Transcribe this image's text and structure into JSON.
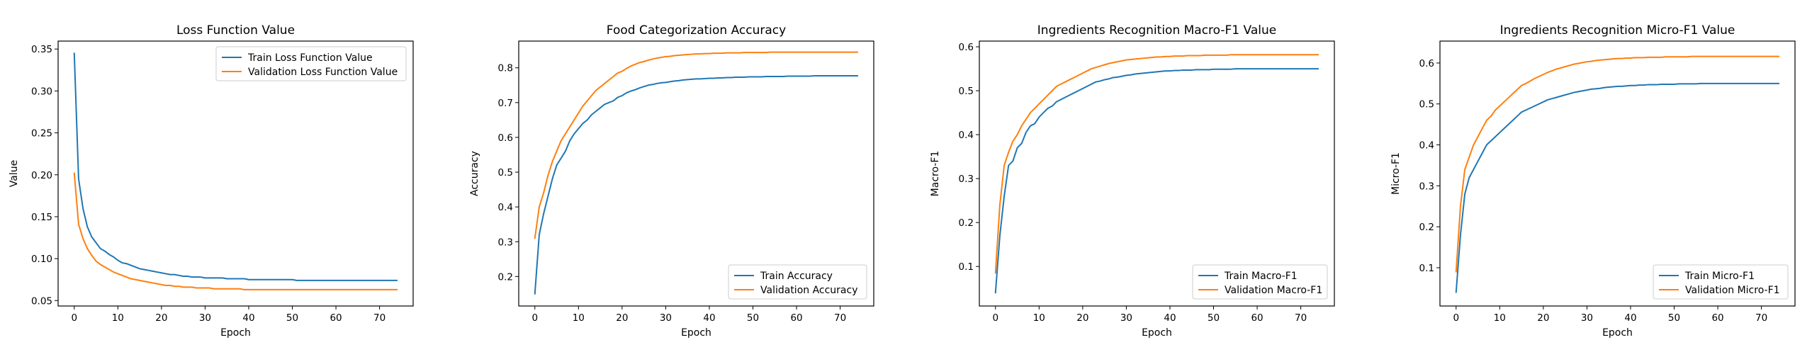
{
  "colors": {
    "train": "#1f77b4",
    "validation": "#ff7f0e",
    "axis": "#000000",
    "legend_border": "#cccccc"
  },
  "chart_data": [
    {
      "type": "line",
      "title": "Loss Function Value",
      "xlabel": "Epoch",
      "ylabel": "Value",
      "xlim": [
        -3.7,
        77.7
      ],
      "ylim": [
        0.0435,
        0.3595
      ],
      "xticks": [
        0,
        10,
        20,
        30,
        40,
        50,
        60,
        70
      ],
      "yticks": [
        0.05,
        0.1,
        0.15,
        0.2,
        0.25,
        0.3,
        0.35
      ],
      "ytick_labels": [
        "0.05",
        "0.10",
        "0.15",
        "0.20",
        "0.25",
        "0.30",
        "0.35"
      ],
      "legend_loc": "upper right",
      "series": [
        {
          "name": "Train Loss Function Value",
          "color_key": "train",
          "values": [
            0.345,
            0.195,
            0.16,
            0.138,
            0.126,
            0.119,
            0.112,
            0.109,
            0.105,
            0.102,
            0.098,
            0.095,
            0.094,
            0.092,
            0.09,
            0.088,
            0.087,
            0.086,
            0.085,
            0.084,
            0.083,
            0.082,
            0.081,
            0.081,
            0.08,
            0.079,
            0.079,
            0.078,
            0.078,
            0.078,
            0.077,
            0.077,
            0.077,
            0.077,
            0.077,
            0.076,
            0.076,
            0.076,
            0.076,
            0.076,
            0.075,
            0.075,
            0.075,
            0.075,
            0.075,
            0.075,
            0.075,
            0.075,
            0.075,
            0.075,
            0.075,
            0.074,
            0.074,
            0.074,
            0.074,
            0.074,
            0.074,
            0.074,
            0.074,
            0.074,
            0.074,
            0.074,
            0.074,
            0.074,
            0.074,
            0.074,
            0.074,
            0.074,
            0.074,
            0.074,
            0.074,
            0.074,
            0.074,
            0.074,
            0.074
          ]
        },
        {
          "name": "Validation Loss Function Value",
          "color_key": "validation",
          "values": [
            0.202,
            0.141,
            0.124,
            0.112,
            0.104,
            0.097,
            0.093,
            0.09,
            0.087,
            0.084,
            0.082,
            0.08,
            0.078,
            0.076,
            0.075,
            0.074,
            0.073,
            0.072,
            0.071,
            0.07,
            0.069,
            0.068,
            0.068,
            0.067,
            0.067,
            0.066,
            0.066,
            0.066,
            0.065,
            0.065,
            0.065,
            0.065,
            0.064,
            0.064,
            0.064,
            0.064,
            0.064,
            0.064,
            0.064,
            0.063,
            0.063,
            0.063,
            0.063,
            0.063,
            0.063,
            0.063,
            0.063,
            0.063,
            0.063,
            0.063,
            0.063,
            0.063,
            0.063,
            0.063,
            0.063,
            0.063,
            0.063,
            0.063,
            0.063,
            0.063,
            0.063,
            0.063,
            0.063,
            0.063,
            0.063,
            0.063,
            0.063,
            0.063,
            0.063,
            0.063,
            0.063,
            0.063,
            0.063,
            0.063,
            0.063
          ]
        }
      ]
    },
    {
      "type": "line",
      "title": "Food Categorization Accuracy",
      "xlabel": "Epoch",
      "ylabel": "Accuracy",
      "xlim": [
        -3.7,
        77.7
      ],
      "ylim": [
        0.1152,
        0.8768
      ],
      "xticks": [
        0,
        10,
        20,
        30,
        40,
        50,
        60,
        70
      ],
      "yticks": [
        0.2,
        0.3,
        0.4,
        0.5,
        0.6,
        0.7,
        0.8
      ],
      "ytick_labels": [
        "0.2",
        "0.3",
        "0.4",
        "0.5",
        "0.6",
        "0.7",
        "0.8"
      ],
      "legend_loc": "lower right",
      "series": [
        {
          "name": "Train Accuracy",
          "color_key": "train",
          "values": [
            0.15,
            0.32,
            0.38,
            0.43,
            0.48,
            0.52,
            0.54,
            0.56,
            0.59,
            0.61,
            0.625,
            0.64,
            0.65,
            0.665,
            0.675,
            0.685,
            0.695,
            0.7,
            0.705,
            0.715,
            0.72,
            0.728,
            0.733,
            0.737,
            0.742,
            0.746,
            0.75,
            0.752,
            0.755,
            0.757,
            0.758,
            0.76,
            0.762,
            0.763,
            0.765,
            0.766,
            0.767,
            0.768,
            0.768,
            0.769,
            0.77,
            0.77,
            0.771,
            0.771,
            0.772,
            0.772,
            0.773,
            0.773,
            0.773,
            0.774,
            0.774,
            0.774,
            0.774,
            0.775,
            0.775,
            0.775,
            0.775,
            0.775,
            0.776,
            0.776,
            0.776,
            0.776,
            0.776,
            0.776,
            0.777,
            0.777,
            0.777,
            0.777,
            0.777,
            0.777,
            0.777,
            0.777,
            0.777,
            0.777,
            0.777
          ]
        },
        {
          "name": "Validation Accuracy",
          "color_key": "validation",
          "values": [
            0.31,
            0.4,
            0.44,
            0.49,
            0.53,
            0.56,
            0.59,
            0.61,
            0.63,
            0.65,
            0.67,
            0.69,
            0.705,
            0.72,
            0.735,
            0.745,
            0.755,
            0.765,
            0.775,
            0.785,
            0.79,
            0.798,
            0.805,
            0.81,
            0.815,
            0.818,
            0.822,
            0.825,
            0.828,
            0.83,
            0.832,
            0.833,
            0.835,
            0.836,
            0.837,
            0.838,
            0.839,
            0.84,
            0.84,
            0.841,
            0.841,
            0.842,
            0.842,
            0.842,
            0.843,
            0.843,
            0.843,
            0.843,
            0.844,
            0.844,
            0.844,
            0.844,
            0.844,
            0.844,
            0.845,
            0.845,
            0.845,
            0.845,
            0.845,
            0.845,
            0.845,
            0.845,
            0.845,
            0.845,
            0.845,
            0.845,
            0.845,
            0.845,
            0.845,
            0.845,
            0.845,
            0.845,
            0.845,
            0.845,
            0.845
          ]
        }
      ]
    },
    {
      "type": "line",
      "title": "Ingredients Recognition Macro-F1 Value",
      "xlabel": "Epoch",
      "ylabel": "Macro-F1",
      "xlim": [
        -3.7,
        77.7
      ],
      "ylim": [
        0.01,
        0.613
      ],
      "xticks": [
        0,
        10,
        20,
        30,
        40,
        50,
        60,
        70
      ],
      "yticks": [
        0.1,
        0.2,
        0.3,
        0.4,
        0.5,
        0.6
      ],
      "ytick_labels": [
        "0.1",
        "0.2",
        "0.3",
        "0.4",
        "0.5",
        "0.6"
      ],
      "legend_loc": "lower right",
      "series": [
        {
          "name": "Train Macro-F1",
          "color_key": "train",
          "values": [
            0.04,
            0.17,
            0.26,
            0.33,
            0.34,
            0.37,
            0.38,
            0.405,
            0.42,
            0.425,
            0.44,
            0.45,
            0.46,
            0.465,
            0.475,
            0.48,
            0.485,
            0.49,
            0.495,
            0.5,
            0.505,
            0.51,
            0.515,
            0.52,
            0.522,
            0.525,
            0.527,
            0.53,
            0.531,
            0.533,
            0.535,
            0.536,
            0.538,
            0.539,
            0.54,
            0.541,
            0.542,
            0.543,
            0.544,
            0.545,
            0.545,
            0.546,
            0.546,
            0.547,
            0.547,
            0.547,
            0.548,
            0.548,
            0.548,
            0.548,
            0.549,
            0.549,
            0.549,
            0.549,
            0.549,
            0.55,
            0.55,
            0.55,
            0.55,
            0.55,
            0.55,
            0.55,
            0.55,
            0.55,
            0.55,
            0.55,
            0.55,
            0.55,
            0.55,
            0.55,
            0.55,
            0.55,
            0.55,
            0.55,
            0.55
          ]
        },
        {
          "name": "Validation Macro-F1",
          "color_key": "validation",
          "values": [
            0.085,
            0.24,
            0.33,
            0.36,
            0.385,
            0.4,
            0.42,
            0.435,
            0.45,
            0.46,
            0.47,
            0.48,
            0.49,
            0.5,
            0.51,
            0.515,
            0.52,
            0.525,
            0.53,
            0.535,
            0.54,
            0.545,
            0.55,
            0.553,
            0.556,
            0.559,
            0.562,
            0.564,
            0.566,
            0.568,
            0.57,
            0.571,
            0.572,
            0.573,
            0.574,
            0.575,
            0.576,
            0.577,
            0.577,
            0.578,
            0.578,
            0.579,
            0.579,
            0.579,
            0.58,
            0.58,
            0.58,
            0.58,
            0.581,
            0.581,
            0.581,
            0.581,
            0.581,
            0.581,
            0.582,
            0.582,
            0.582,
            0.582,
            0.582,
            0.582,
            0.582,
            0.582,
            0.582,
            0.582,
            0.582,
            0.582,
            0.582,
            0.582,
            0.582,
            0.582,
            0.582,
            0.582,
            0.582,
            0.582,
            0.582
          ]
        }
      ]
    },
    {
      "type": "line",
      "title": "Ingredients Recognition Micro-F1 Value",
      "xlabel": "Epoch",
      "ylabel": "Micro-F1",
      "xlim": [
        -3.7,
        77.7
      ],
      "ylim": [
        0.0065,
        0.6535
      ],
      "xticks": [
        0,
        10,
        20,
        30,
        40,
        50,
        60,
        70
      ],
      "yticks": [
        0.1,
        0.2,
        0.3,
        0.4,
        0.5,
        0.6
      ],
      "ytick_labels": [
        "0.1",
        "0.2",
        "0.3",
        "0.4",
        "0.5",
        "0.6"
      ],
      "legend_loc": "lower right",
      "series": [
        {
          "name": "Train Micro-F1",
          "color_key": "train",
          "values": [
            0.04,
            0.18,
            0.28,
            0.32,
            0.34,
            0.36,
            0.38,
            0.4,
            0.41,
            0.42,
            0.43,
            0.44,
            0.45,
            0.46,
            0.47,
            0.48,
            0.485,
            0.49,
            0.495,
            0.5,
            0.505,
            0.51,
            0.513,
            0.516,
            0.519,
            0.522,
            0.525,
            0.528,
            0.53,
            0.532,
            0.534,
            0.536,
            0.537,
            0.538,
            0.54,
            0.541,
            0.542,
            0.543,
            0.543,
            0.544,
            0.545,
            0.545,
            0.546,
            0.546,
            0.547,
            0.547,
            0.547,
            0.548,
            0.548,
            0.548,
            0.548,
            0.549,
            0.549,
            0.549,
            0.549,
            0.549,
            0.55,
            0.55,
            0.55,
            0.55,
            0.55,
            0.55,
            0.55,
            0.55,
            0.55,
            0.55,
            0.55,
            0.55,
            0.55,
            0.55,
            0.55,
            0.55,
            0.55,
            0.55,
            0.55
          ]
        },
        {
          "name": "Validation Micro-F1",
          "color_key": "validation",
          "values": [
            0.09,
            0.25,
            0.34,
            0.37,
            0.4,
            0.42,
            0.44,
            0.46,
            0.47,
            0.485,
            0.495,
            0.505,
            0.515,
            0.525,
            0.535,
            0.545,
            0.55,
            0.556,
            0.562,
            0.567,
            0.572,
            0.577,
            0.581,
            0.585,
            0.588,
            0.591,
            0.594,
            0.597,
            0.599,
            0.601,
            0.603,
            0.604,
            0.606,
            0.607,
            0.608,
            0.609,
            0.61,
            0.611,
            0.611,
            0.612,
            0.612,
            0.613,
            0.613,
            0.613,
            0.614,
            0.614,
            0.614,
            0.614,
            0.615,
            0.615,
            0.615,
            0.615,
            0.615,
            0.615,
            0.616,
            0.616,
            0.616,
            0.616,
            0.616,
            0.616,
            0.616,
            0.616,
            0.616,
            0.616,
            0.616,
            0.616,
            0.616,
            0.616,
            0.616,
            0.616,
            0.616,
            0.616,
            0.616,
            0.616,
            0.616
          ]
        }
      ]
    }
  ]
}
